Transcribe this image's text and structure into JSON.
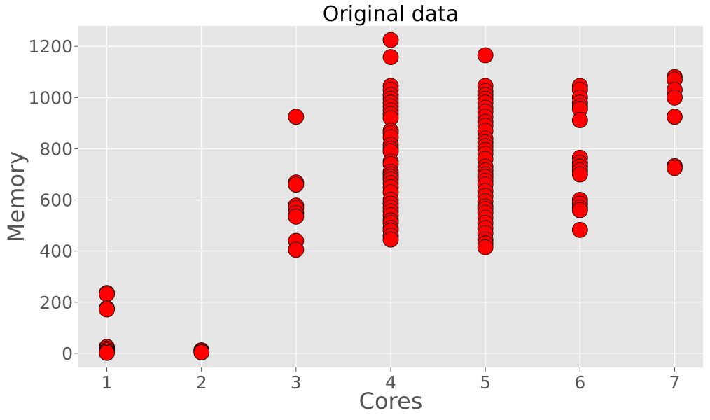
{
  "chart_data": {
    "type": "scatter",
    "title": "Original data",
    "xlabel": "Cores",
    "ylabel": "Memory",
    "xlim": [
      0.7,
      7.3
    ],
    "ylim": [
      -55,
      1280
    ],
    "xticks": [
      1,
      2,
      3,
      4,
      5,
      6,
      7
    ],
    "yticks": [
      0,
      200,
      400,
      600,
      800,
      1000,
      1200
    ],
    "grid": true,
    "legend": "none",
    "style": {
      "background": "#e5e5e5",
      "grid_color": "#ffffff",
      "marker_color": "#ff0000",
      "marker_edge": "#000000",
      "title_color": "#000000",
      "label_color": "#555555"
    },
    "points": [
      {
        "x": 1,
        "y": 236
      },
      {
        "x": 1,
        "y": 232
      },
      {
        "x": 1,
        "y": 176
      },
      {
        "x": 1,
        "y": 172
      },
      {
        "x": 1,
        "y": 25
      },
      {
        "x": 1,
        "y": 18
      },
      {
        "x": 1,
        "y": 12
      },
      {
        "x": 1,
        "y": 6
      },
      {
        "x": 1,
        "y": 2
      },
      {
        "x": 2,
        "y": 12
      },
      {
        "x": 2,
        "y": 8
      },
      {
        "x": 2,
        "y": 4
      },
      {
        "x": 3,
        "y": 925
      },
      {
        "x": 3,
        "y": 668
      },
      {
        "x": 3,
        "y": 660
      },
      {
        "x": 3,
        "y": 578
      },
      {
        "x": 3,
        "y": 568
      },
      {
        "x": 3,
        "y": 548
      },
      {
        "x": 3,
        "y": 535
      },
      {
        "x": 3,
        "y": 440
      },
      {
        "x": 3,
        "y": 405
      },
      {
        "x": 4,
        "y": 1225
      },
      {
        "x": 4,
        "y": 1158
      },
      {
        "x": 4,
        "y": 1045
      },
      {
        "x": 4,
        "y": 1030
      },
      {
        "x": 4,
        "y": 1010
      },
      {
        "x": 4,
        "y": 995
      },
      {
        "x": 4,
        "y": 980
      },
      {
        "x": 4,
        "y": 965
      },
      {
        "x": 4,
        "y": 950
      },
      {
        "x": 4,
        "y": 935
      },
      {
        "x": 4,
        "y": 920
      },
      {
        "x": 4,
        "y": 870
      },
      {
        "x": 4,
        "y": 860
      },
      {
        "x": 4,
        "y": 845
      },
      {
        "x": 4,
        "y": 815
      },
      {
        "x": 4,
        "y": 800
      },
      {
        "x": 4,
        "y": 790
      },
      {
        "x": 4,
        "y": 750
      },
      {
        "x": 4,
        "y": 740
      },
      {
        "x": 4,
        "y": 710
      },
      {
        "x": 4,
        "y": 700
      },
      {
        "x": 4,
        "y": 690
      },
      {
        "x": 4,
        "y": 680
      },
      {
        "x": 4,
        "y": 665
      },
      {
        "x": 4,
        "y": 650
      },
      {
        "x": 4,
        "y": 630
      },
      {
        "x": 4,
        "y": 600
      },
      {
        "x": 4,
        "y": 585
      },
      {
        "x": 4,
        "y": 570
      },
      {
        "x": 4,
        "y": 555
      },
      {
        "x": 4,
        "y": 540
      },
      {
        "x": 4,
        "y": 520
      },
      {
        "x": 4,
        "y": 510
      },
      {
        "x": 4,
        "y": 490
      },
      {
        "x": 4,
        "y": 480
      },
      {
        "x": 4,
        "y": 460
      },
      {
        "x": 4,
        "y": 445
      },
      {
        "x": 5,
        "y": 1165
      },
      {
        "x": 5,
        "y": 1045
      },
      {
        "x": 5,
        "y": 1025
      },
      {
        "x": 5,
        "y": 1010
      },
      {
        "x": 5,
        "y": 995
      },
      {
        "x": 5,
        "y": 980
      },
      {
        "x": 5,
        "y": 960
      },
      {
        "x": 5,
        "y": 945
      },
      {
        "x": 5,
        "y": 925
      },
      {
        "x": 5,
        "y": 905
      },
      {
        "x": 5,
        "y": 890
      },
      {
        "x": 5,
        "y": 870
      },
      {
        "x": 5,
        "y": 840
      },
      {
        "x": 5,
        "y": 825
      },
      {
        "x": 5,
        "y": 810
      },
      {
        "x": 5,
        "y": 795
      },
      {
        "x": 5,
        "y": 780
      },
      {
        "x": 5,
        "y": 760
      },
      {
        "x": 5,
        "y": 730
      },
      {
        "x": 5,
        "y": 715
      },
      {
        "x": 5,
        "y": 700
      },
      {
        "x": 5,
        "y": 690
      },
      {
        "x": 5,
        "y": 675
      },
      {
        "x": 5,
        "y": 660
      },
      {
        "x": 5,
        "y": 635
      },
      {
        "x": 5,
        "y": 615
      },
      {
        "x": 5,
        "y": 595
      },
      {
        "x": 5,
        "y": 575
      },
      {
        "x": 5,
        "y": 565
      },
      {
        "x": 5,
        "y": 550
      },
      {
        "x": 5,
        "y": 530
      },
      {
        "x": 5,
        "y": 510
      },
      {
        "x": 5,
        "y": 490
      },
      {
        "x": 5,
        "y": 470
      },
      {
        "x": 5,
        "y": 445
      },
      {
        "x": 5,
        "y": 430
      },
      {
        "x": 5,
        "y": 415
      },
      {
        "x": 6,
        "y": 1045
      },
      {
        "x": 6,
        "y": 1030
      },
      {
        "x": 6,
        "y": 1000
      },
      {
        "x": 6,
        "y": 980
      },
      {
        "x": 6,
        "y": 965
      },
      {
        "x": 6,
        "y": 955
      },
      {
        "x": 6,
        "y": 912
      },
      {
        "x": 6,
        "y": 765
      },
      {
        "x": 6,
        "y": 745
      },
      {
        "x": 6,
        "y": 730
      },
      {
        "x": 6,
        "y": 715
      },
      {
        "x": 6,
        "y": 700
      },
      {
        "x": 6,
        "y": 600
      },
      {
        "x": 6,
        "y": 585
      },
      {
        "x": 6,
        "y": 570
      },
      {
        "x": 6,
        "y": 560
      },
      {
        "x": 6,
        "y": 483
      },
      {
        "x": 7,
        "y": 1080
      },
      {
        "x": 7,
        "y": 1070
      },
      {
        "x": 7,
        "y": 1030
      },
      {
        "x": 7,
        "y": 1000
      },
      {
        "x": 7,
        "y": 925
      },
      {
        "x": 7,
        "y": 732
      },
      {
        "x": 7,
        "y": 725
      }
    ]
  }
}
